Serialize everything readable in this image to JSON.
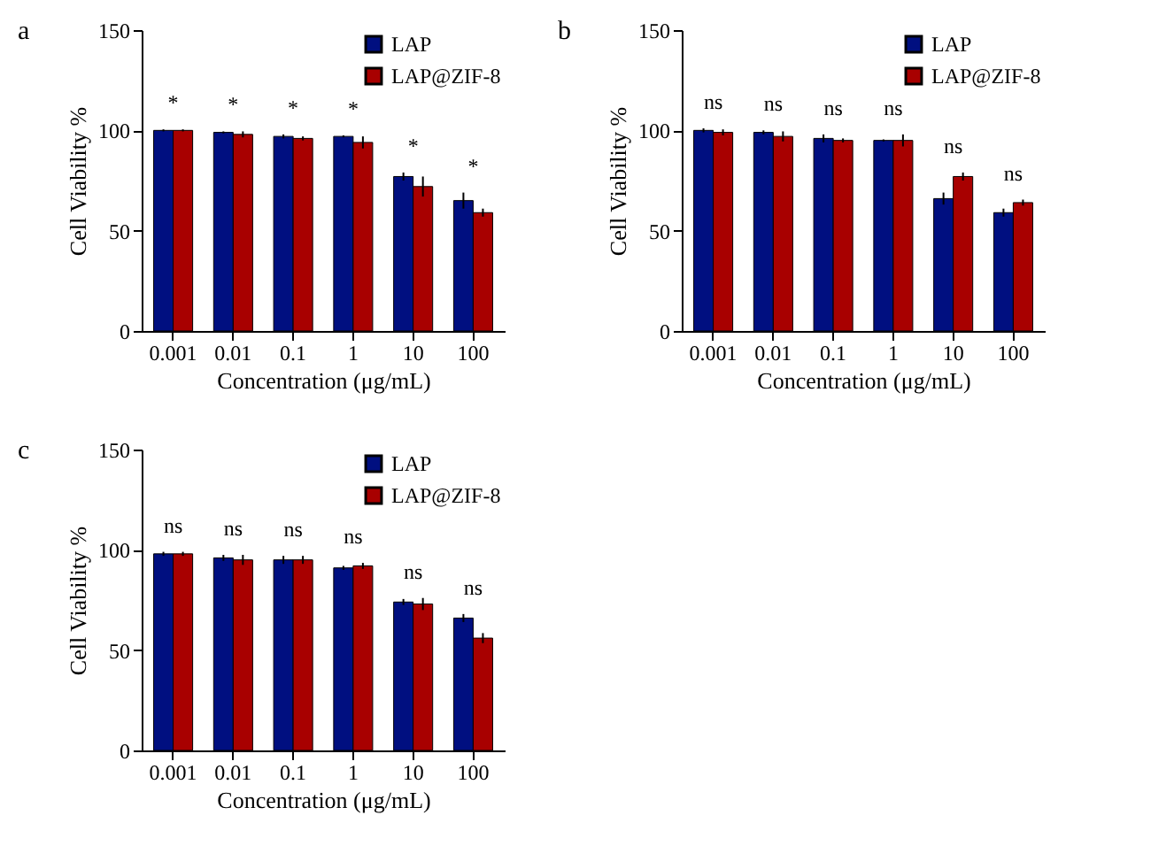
{
  "chart_data": [
    {
      "type": "bar",
      "title": "a",
      "xlabel": "Concentration (μg/mL)",
      "ylabel": "Cell Viability %",
      "categories": [
        "0.001",
        "0.01",
        "0.1",
        "1",
        "10",
        "100"
      ],
      "ylim": [
        0,
        150
      ],
      "yticks": [
        0,
        50,
        100,
        150
      ],
      "grid": false,
      "legend": "top right",
      "series": [
        {
          "name": "LAP",
          "color": "#000f80",
          "values": [
            100,
            99,
            97,
            97,
            77,
            65
          ],
          "errors": [
            0.5,
            0.5,
            1,
            0.5,
            2,
            4
          ]
        },
        {
          "name": "LAP@ZIF-8",
          "color": "#a80000",
          "values": [
            100,
            98,
            96,
            94,
            72,
            59
          ],
          "errors": [
            0.5,
            1.5,
            1,
            3,
            5,
            2
          ]
        }
      ],
      "annotations": [
        "*",
        "*",
        "*",
        "*",
        "*",
        "*"
      ]
    },
    {
      "type": "bar",
      "title": "b",
      "xlabel": "Concentration (μg/mL)",
      "ylabel": "Cell Viability %",
      "categories": [
        "0.001",
        "0.01",
        "0.1",
        "1",
        "10",
        "100"
      ],
      "ylim": [
        0,
        150
      ],
      "yticks": [
        0,
        50,
        100,
        150
      ],
      "grid": false,
      "legend": "top right",
      "series": [
        {
          "name": "LAP",
          "color": "#000f80",
          "values": [
            100,
            99,
            96,
            95,
            66,
            59
          ],
          "errors": [
            1,
            1,
            2,
            0.5,
            3,
            2
          ]
        },
        {
          "name": "LAP@ZIF-8",
          "color": "#a80000",
          "values": [
            99,
            97,
            95,
            95,
            77,
            64
          ],
          "errors": [
            1.5,
            2.5,
            1,
            3,
            2,
            1.5
          ]
        }
      ],
      "annotations": [
        "ns",
        "ns",
        "ns",
        "ns",
        "ns",
        "ns"
      ]
    },
    {
      "type": "bar",
      "title": "c",
      "xlabel": "Concentration (μg/mL)",
      "ylabel": "Cell Viability %",
      "categories": [
        "0.001",
        "0.01",
        "0.1",
        "1",
        "10",
        "100"
      ],
      "ylim": [
        0,
        150
      ],
      "yticks": [
        0,
        50,
        100,
        150
      ],
      "grid": false,
      "legend": "top right",
      "series": [
        {
          "name": "LAP",
          "color": "#000f80",
          "values": [
            98,
            96,
            95,
            91,
            74,
            66
          ],
          "errors": [
            1,
            1.5,
            2,
            1,
            1.5,
            2
          ]
        },
        {
          "name": "LAP@ZIF-8",
          "color": "#a80000",
          "values": [
            98,
            95,
            95,
            92,
            73,
            56
          ],
          "errors": [
            1,
            2.5,
            2,
            1.5,
            3,
            2.5
          ]
        }
      ],
      "annotations": [
        "ns",
        "ns",
        "ns",
        "ns",
        "ns",
        "ns"
      ]
    }
  ]
}
